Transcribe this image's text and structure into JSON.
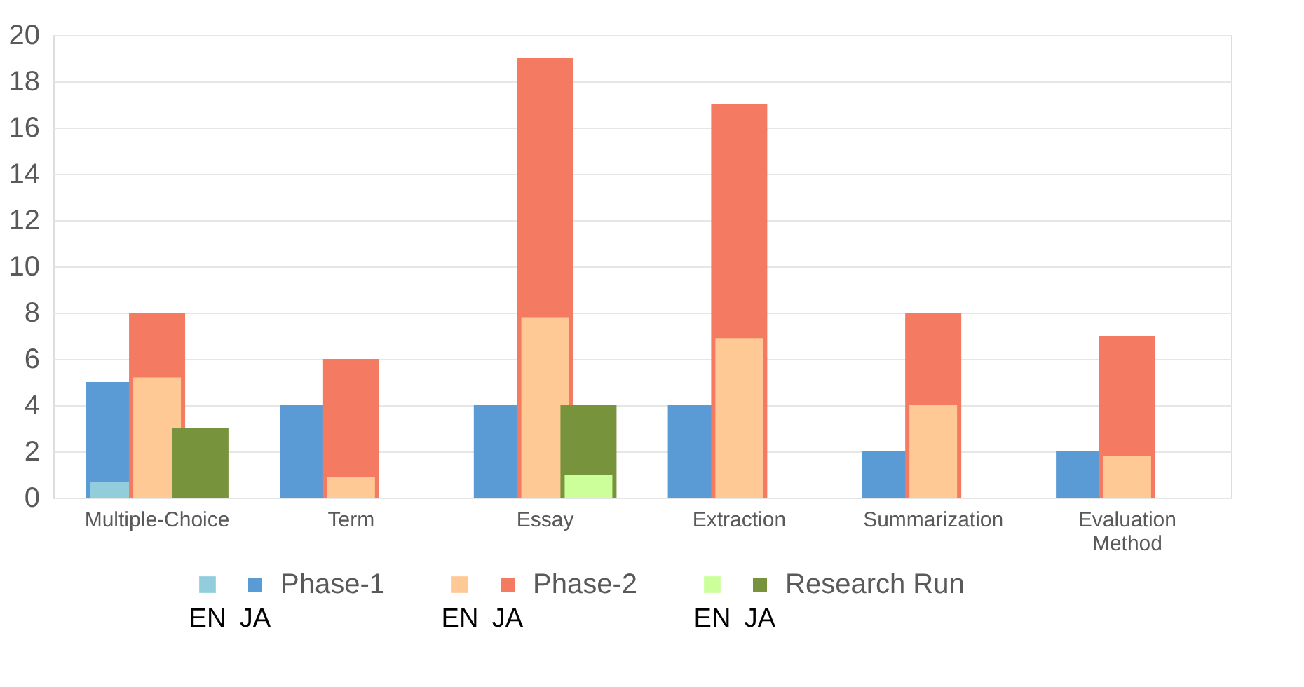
{
  "chart_data": {
    "type": "bar",
    "categories": [
      "Multiple-Choice",
      "Term",
      "Essay",
      "Extraction",
      "Summarization",
      "Evaluation Method"
    ],
    "series": [
      {
        "name": "JA",
        "color": "#5b9bd5",
        "values": [
          5,
          4,
          4,
          4,
          2,
          2
        ]
      },
      {
        "name": "EN",
        "color": "#92cddc",
        "values": [
          0.7,
          0,
          0,
          0,
          0,
          0
        ]
      },
      {
        "name": "JA",
        "color": "#f47a61",
        "values": [
          8,
          6,
          19,
          17,
          8,
          7
        ]
      },
      {
        "name": "EN",
        "color": "#fec995",
        "values": [
          5.2,
          0.9,
          7.8,
          6.9,
          4,
          1.8
        ]
      },
      {
        "name": "JA",
        "color": "#77933c",
        "values": [
          3,
          0,
          4,
          0,
          0,
          0
        ]
      },
      {
        "name": "EN",
        "color": "#ccff99",
        "values": [
          0,
          0,
          1,
          0,
          0,
          0
        ]
      }
    ],
    "annotations": [
      "Phase-1",
      "Phase-2",
      "Research Run"
    ],
    "ylim": [
      0,
      20
    ],
    "yticks": [
      0,
      2,
      4,
      6,
      8,
      10,
      12,
      14,
      16,
      18,
      20
    ],
    "grid": "y",
    "legend": "bottom"
  }
}
